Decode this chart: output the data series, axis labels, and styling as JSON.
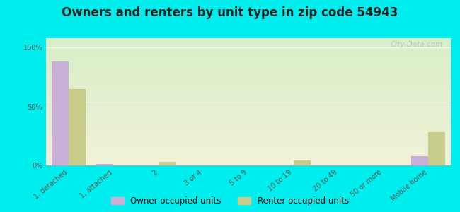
{
  "title": "Owners and renters by unit type in zip code 54943",
  "categories": [
    "1, detached",
    "1, attached",
    "2",
    "3 or 4",
    "5 to 9",
    "10 to 19",
    "20 to 49",
    "50 or more",
    "Mobile home"
  ],
  "owner_values": [
    88,
    1,
    0,
    0,
    0,
    0,
    0,
    0,
    8
  ],
  "renter_values": [
    65,
    0,
    3,
    0,
    0,
    4,
    0,
    0,
    28
  ],
  "owner_color": "#c9aed6",
  "renter_color": "#c8cc8a",
  "background_color": "#00eeee",
  "grad_top": "#d8eec8",
  "grad_bottom": "#f2f2d8",
  "ylabel_ticks": [
    "0%",
    "50%",
    "100%"
  ],
  "ytick_vals": [
    0,
    50,
    100
  ],
  "ylim": [
    0,
    108
  ],
  "bar_width": 0.38,
  "title_fontsize": 12,
  "tick_fontsize": 7,
  "legend_fontsize": 8.5,
  "watermark": "City-Data.com"
}
